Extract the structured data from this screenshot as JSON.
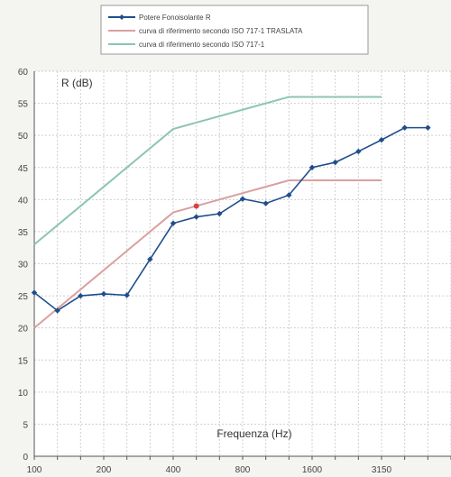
{
  "chart_data": {
    "type": "line",
    "xlabel": "Frequenza (Hz)",
    "ylabel": "R (dB)",
    "ylim": [
      0,
      60
    ],
    "yticks": [
      0,
      5,
      10,
      15,
      20,
      25,
      30,
      35,
      40,
      45,
      50,
      55,
      60
    ],
    "xlim_index": [
      0,
      18
    ],
    "xticks": [
      {
        "label": "100",
        "index": 0
      },
      {
        "label": "200",
        "index": 3
      },
      {
        "label": "400",
        "index": 6
      },
      {
        "label": "800",
        "index": 9
      },
      {
        "label": "1600",
        "index": 12
      },
      {
        "label": "3150",
        "index": 15
      }
    ],
    "grid": true,
    "legend_position": "top",
    "series": [
      {
        "name": "Potere Fonoisolante R",
        "color": "#1f4e8c",
        "marker": "diamond",
        "x_index": [
          0,
          1,
          2,
          3,
          4,
          5,
          6,
          7,
          8,
          9,
          10,
          11,
          12,
          13,
          14,
          15,
          16,
          17
        ],
        "values": [
          25.5,
          22.7,
          25,
          25.3,
          25.1,
          30.7,
          36.3,
          37.3,
          37.8,
          40.1,
          39.4,
          40.7,
          45,
          45.8,
          47.5,
          49.3,
          51.2,
          51.2
        ]
      },
      {
        "name": "curva di riferimento secondo ISO 717-1 TRASLATA",
        "color": "#d9a0a0",
        "x_index": [
          0,
          6,
          7,
          8,
          9,
          10,
          11,
          12,
          13,
          14,
          15
        ],
        "values": [
          20,
          38,
          39,
          40,
          41,
          42,
          43,
          43,
          43,
          43,
          43
        ]
      },
      {
        "name": "curva di riferimento secondo ISO 717-1",
        "color": "#8cc4b4",
        "x_index": [
          0,
          6,
          7,
          8,
          9,
          10,
          11,
          12,
          13,
          14,
          15
        ],
        "values": [
          33,
          51,
          52,
          53,
          54,
          55,
          56,
          56,
          56,
          56,
          56
        ]
      }
    ],
    "highlight_point": {
      "x_index": 7,
      "value": 39,
      "color": "#d94040"
    }
  }
}
